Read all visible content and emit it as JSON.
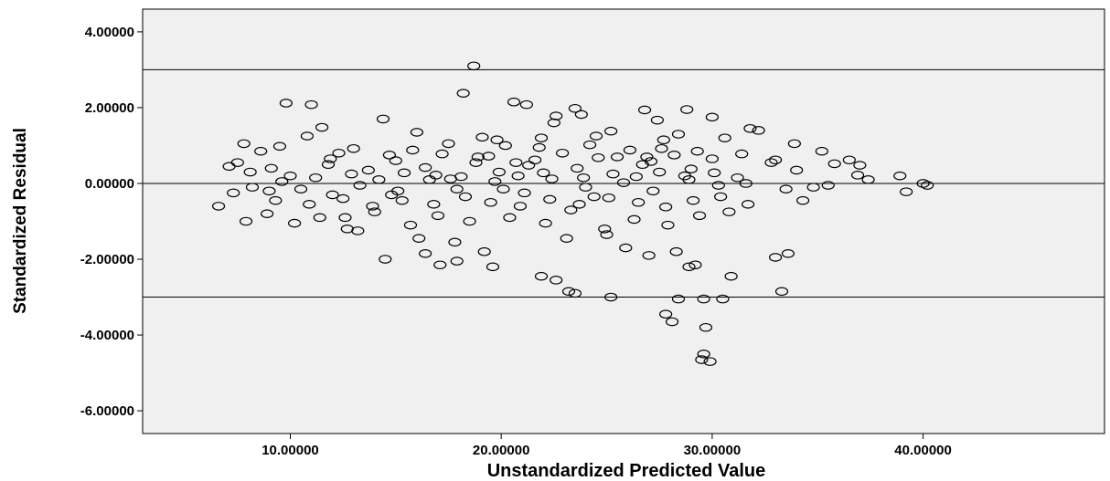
{
  "chart_data": {
    "type": "scatter",
    "title": "",
    "xlabel": "Unstandardized Predicted Value",
    "ylabel": "Standardized Residual",
    "xlim": [
      3.0,
      48.6
    ],
    "ylim": [
      -6.6,
      4.6
    ],
    "x_ticks": [
      10,
      20,
      30,
      40
    ],
    "x_tick_labels": [
      "10.00000",
      "20.00000",
      "30.00000",
      "40.00000"
    ],
    "y_ticks": [
      4,
      2,
      0,
      -2,
      -4,
      -6
    ],
    "y_tick_labels": [
      "4.00000",
      "2.00000",
      "0.00000",
      "-2.00000",
      "-4.00000",
      "-6.00000"
    ],
    "reference_lines_y": [
      3,
      0,
      -3
    ],
    "plot_background": "#f0f0f0",
    "marker": "open-circle",
    "grid": false,
    "legend": "none",
    "series": [
      {
        "points": [
          [
            18.7,
            3.1
          ],
          [
            18.2,
            2.38
          ],
          [
            9.8,
            2.12
          ],
          [
            11.0,
            2.08
          ],
          [
            20.6,
            2.15
          ],
          [
            21.2,
            2.08
          ],
          [
            23.5,
            1.98
          ],
          [
            26.8,
            1.94
          ],
          [
            28.8,
            1.95
          ],
          [
            23.8,
            1.82
          ],
          [
            22.6,
            1.78
          ],
          [
            30.0,
            1.75
          ],
          [
            14.4,
            1.7
          ],
          [
            27.4,
            1.67
          ],
          [
            22.5,
            1.6
          ],
          [
            11.5,
            1.48
          ],
          [
            31.8,
            1.45
          ],
          [
            32.2,
            1.4
          ],
          [
            10.8,
            1.25
          ],
          [
            16.0,
            1.35
          ],
          [
            19.1,
            1.22
          ],
          [
            25.2,
            1.38
          ],
          [
            28.4,
            1.3
          ],
          [
            30.6,
            1.2
          ],
          [
            7.8,
            1.05
          ],
          [
            9.5,
            0.98
          ],
          [
            13.0,
            0.92
          ],
          [
            15.8,
            0.88
          ],
          [
            17.5,
            1.05
          ],
          [
            20.2,
            1.0
          ],
          [
            21.8,
            0.95
          ],
          [
            24.2,
            1.02
          ],
          [
            26.1,
            0.88
          ],
          [
            27.6,
            0.92
          ],
          [
            29.3,
            0.85
          ],
          [
            33.9,
            1.05
          ],
          [
            8.6,
            0.85
          ],
          [
            12.3,
            0.8
          ],
          [
            14.7,
            0.75
          ],
          [
            17.2,
            0.78
          ],
          [
            19.4,
            0.72
          ],
          [
            22.9,
            0.8
          ],
          [
            25.5,
            0.7
          ],
          [
            28.2,
            0.75
          ],
          [
            31.4,
            0.78
          ],
          [
            35.2,
            0.85
          ],
          [
            36.5,
            0.62
          ],
          [
            7.1,
            0.45
          ],
          [
            9.1,
            0.4
          ],
          [
            11.8,
            0.5
          ],
          [
            13.7,
            0.35
          ],
          [
            16.4,
            0.42
          ],
          [
            18.8,
            0.55
          ],
          [
            21.3,
            0.48
          ],
          [
            23.6,
            0.4
          ],
          [
            26.7,
            0.5
          ],
          [
            29.0,
            0.38
          ],
          [
            32.8,
            0.55
          ],
          [
            34.0,
            0.35
          ],
          [
            35.8,
            0.52
          ],
          [
            37.0,
            0.48
          ],
          [
            6.6,
            -0.6
          ],
          [
            7.3,
            -0.25
          ],
          [
            8.2,
            -0.1
          ],
          [
            9.6,
            0.05
          ],
          [
            10.5,
            -0.15
          ],
          [
            12.0,
            -0.3
          ],
          [
            13.3,
            -0.05
          ],
          [
            15.1,
            -0.2
          ],
          [
            16.6,
            0.1
          ],
          [
            17.9,
            -0.15
          ],
          [
            19.7,
            0.05
          ],
          [
            21.1,
            -0.25
          ],
          [
            22.4,
            0.12
          ],
          [
            24.0,
            -0.1
          ],
          [
            25.8,
            0.02
          ],
          [
            27.2,
            -0.2
          ],
          [
            28.9,
            0.1
          ],
          [
            30.3,
            -0.05
          ],
          [
            31.6,
            0.0
          ],
          [
            33.5,
            -0.15
          ],
          [
            34.8,
            -0.1
          ],
          [
            37.4,
            0.1
          ],
          [
            38.9,
            0.2
          ],
          [
            39.2,
            -0.22
          ],
          [
            40.0,
            0.0
          ],
          [
            40.2,
            -0.05
          ],
          [
            8.9,
            -0.8
          ],
          [
            10.2,
            -1.05
          ],
          [
            11.4,
            -0.9
          ],
          [
            12.7,
            -1.2
          ],
          [
            14.0,
            -0.75
          ],
          [
            15.7,
            -1.1
          ],
          [
            17.0,
            -0.85
          ],
          [
            18.5,
            -1.0
          ],
          [
            20.4,
            -0.9
          ],
          [
            22.1,
            -1.05
          ],
          [
            23.3,
            -0.7
          ],
          [
            24.9,
            -1.2
          ],
          [
            26.3,
            -0.95
          ],
          [
            27.9,
            -1.1
          ],
          [
            29.4,
            -0.85
          ],
          [
            30.8,
            -0.75
          ],
          [
            7.9,
            -1.0
          ],
          [
            13.2,
            -1.25
          ],
          [
            16.1,
            -1.45
          ],
          [
            17.8,
            -1.55
          ],
          [
            23.1,
            -1.45
          ],
          [
            25.0,
            -1.35
          ],
          [
            14.5,
            -2.0
          ],
          [
            16.4,
            -1.85
          ],
          [
            17.9,
            -2.05
          ],
          [
            17.1,
            -2.15
          ],
          [
            19.2,
            -1.8
          ],
          [
            19.6,
            -2.2
          ],
          [
            21.9,
            -2.45
          ],
          [
            22.6,
            -2.55
          ],
          [
            23.2,
            -2.85
          ],
          [
            23.5,
            -2.9
          ],
          [
            25.2,
            -3.0
          ],
          [
            25.9,
            -1.7
          ],
          [
            27.0,
            -1.9
          ],
          [
            28.3,
            -1.8
          ],
          [
            28.9,
            -2.2
          ],
          [
            29.2,
            -2.15
          ],
          [
            29.6,
            -3.05
          ],
          [
            28.4,
            -3.05
          ],
          [
            30.5,
            -3.05
          ],
          [
            30.9,
            -2.45
          ],
          [
            33.0,
            -1.95
          ],
          [
            33.6,
            -1.85
          ],
          [
            33.3,
            -2.85
          ],
          [
            27.8,
            -3.45
          ],
          [
            28.1,
            -3.65
          ],
          [
            29.7,
            -3.8
          ],
          [
            29.6,
            -4.5
          ],
          [
            29.5,
            -4.65
          ],
          [
            29.9,
            -4.7
          ],
          [
            8.1,
            0.3
          ],
          [
            10.0,
            0.2
          ],
          [
            11.2,
            0.15
          ],
          [
            12.9,
            0.25
          ],
          [
            14.2,
            0.1
          ],
          [
            15.4,
            0.28
          ],
          [
            16.9,
            0.22
          ],
          [
            18.1,
            0.18
          ],
          [
            19.9,
            0.3
          ],
          [
            20.8,
            0.2
          ],
          [
            22.0,
            0.28
          ],
          [
            23.9,
            0.15
          ],
          [
            25.3,
            0.25
          ],
          [
            26.4,
            0.18
          ],
          [
            27.5,
            0.3
          ],
          [
            28.7,
            0.2
          ],
          [
            30.1,
            0.28
          ],
          [
            31.2,
            0.15
          ],
          [
            9.3,
            -0.45
          ],
          [
            10.9,
            -0.55
          ],
          [
            12.5,
            -0.4
          ],
          [
            13.9,
            -0.6
          ],
          [
            15.3,
            -0.45
          ],
          [
            16.8,
            -0.55
          ],
          [
            18.3,
            -0.35
          ],
          [
            19.5,
            -0.5
          ],
          [
            20.9,
            -0.6
          ],
          [
            22.3,
            -0.42
          ],
          [
            23.7,
            -0.55
          ],
          [
            25.1,
            -0.38
          ],
          [
            26.5,
            -0.5
          ],
          [
            27.8,
            -0.62
          ],
          [
            29.1,
            -0.45
          ],
          [
            30.4,
            -0.35
          ],
          [
            31.7,
            -0.55
          ],
          [
            7.5,
            0.55
          ],
          [
            11.9,
            0.65
          ],
          [
            15.0,
            0.6
          ],
          [
            18.9,
            0.7
          ],
          [
            21.6,
            0.62
          ],
          [
            24.6,
            0.68
          ],
          [
            27.1,
            0.58
          ],
          [
            30.0,
            0.65
          ],
          [
            33.0,
            0.62
          ],
          [
            19.8,
            1.15
          ],
          [
            24.5,
            1.25
          ],
          [
            27.7,
            1.15
          ],
          [
            21.9,
            1.2
          ],
          [
            12.6,
            -0.9
          ],
          [
            20.1,
            -0.15
          ],
          [
            24.4,
            -0.35
          ],
          [
            26.9,
            0.7
          ],
          [
            20.7,
            0.55
          ],
          [
            17.6,
            0.12
          ],
          [
            14.8,
            -0.3
          ],
          [
            9.0,
            -0.2
          ],
          [
            35.5,
            -0.05
          ],
          [
            36.9,
            0.22
          ],
          [
            34.3,
            -0.45
          ]
        ]
      }
    ]
  }
}
